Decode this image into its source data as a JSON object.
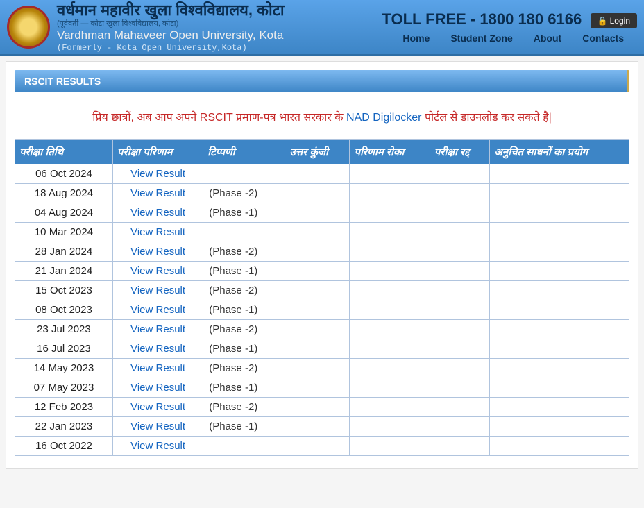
{
  "header": {
    "title_hindi": "वर्धमान महावीर खुला विश्वविद्यालय, कोटा",
    "subtitle1": "(पूर्ववर्ती — कोटा खुला विश्वविद्यालय, कोटा)",
    "title_eng": "Vardhman Mahaveer Open University, Kota",
    "subtitle2": "(Formerly - Kota Open University,Kota)",
    "tollfree": "TOLL FREE - 1800 180 6166",
    "login": "Login"
  },
  "nav": {
    "home": "Home",
    "student_zone": "Student Zone",
    "about": "About",
    "contacts": "Contacts"
  },
  "section_title": "RSCIT RESULTS",
  "notice": {
    "prefix": "प्रिय छात्रों, अब आप अपने RSCIT प्रमाण-पत्र भारत सरकार के ",
    "link": "NAD Digilocker",
    "suffix": " पोर्टल से डाउनलोड कर सकते है|"
  },
  "table": {
    "columns": [
      "परीक्षा तिथि",
      "परीक्षा परिणाम",
      "टिप्पणी",
      "उत्तर कुंजी",
      "परिणाम रोका",
      "परीक्षा रद्द",
      "अनुचित साधनों का प्रयोग"
    ],
    "view_result_label": "View Result",
    "rows": [
      {
        "date": "06 Oct 2024",
        "remark": ""
      },
      {
        "date": "18 Aug 2024",
        "remark": "(Phase -2)"
      },
      {
        "date": "04 Aug 2024",
        "remark": "(Phase -1)"
      },
      {
        "date": "10 Mar 2024",
        "remark": ""
      },
      {
        "date": "28 Jan 2024",
        "remark": "(Phase -2)"
      },
      {
        "date": "21 Jan 2024",
        "remark": "(Phase -1)"
      },
      {
        "date": "15 Oct 2023",
        "remark": "(Phase -2)"
      },
      {
        "date": "08 Oct 2023",
        "remark": "(Phase -1)"
      },
      {
        "date": "23 Jul 2023",
        "remark": "(Phase -2)"
      },
      {
        "date": "16 Jul 2023",
        "remark": "(Phase -1)"
      },
      {
        "date": "14 May 2023",
        "remark": "(Phase -2)"
      },
      {
        "date": "07 May 2023",
        "remark": "(Phase -1)"
      },
      {
        "date": "12 Feb 2023",
        "remark": "(Phase -2)"
      },
      {
        "date": "22 Jan 2023",
        "remark": "(Phase -1)"
      },
      {
        "date": "16 Oct 2022",
        "remark": ""
      }
    ]
  }
}
